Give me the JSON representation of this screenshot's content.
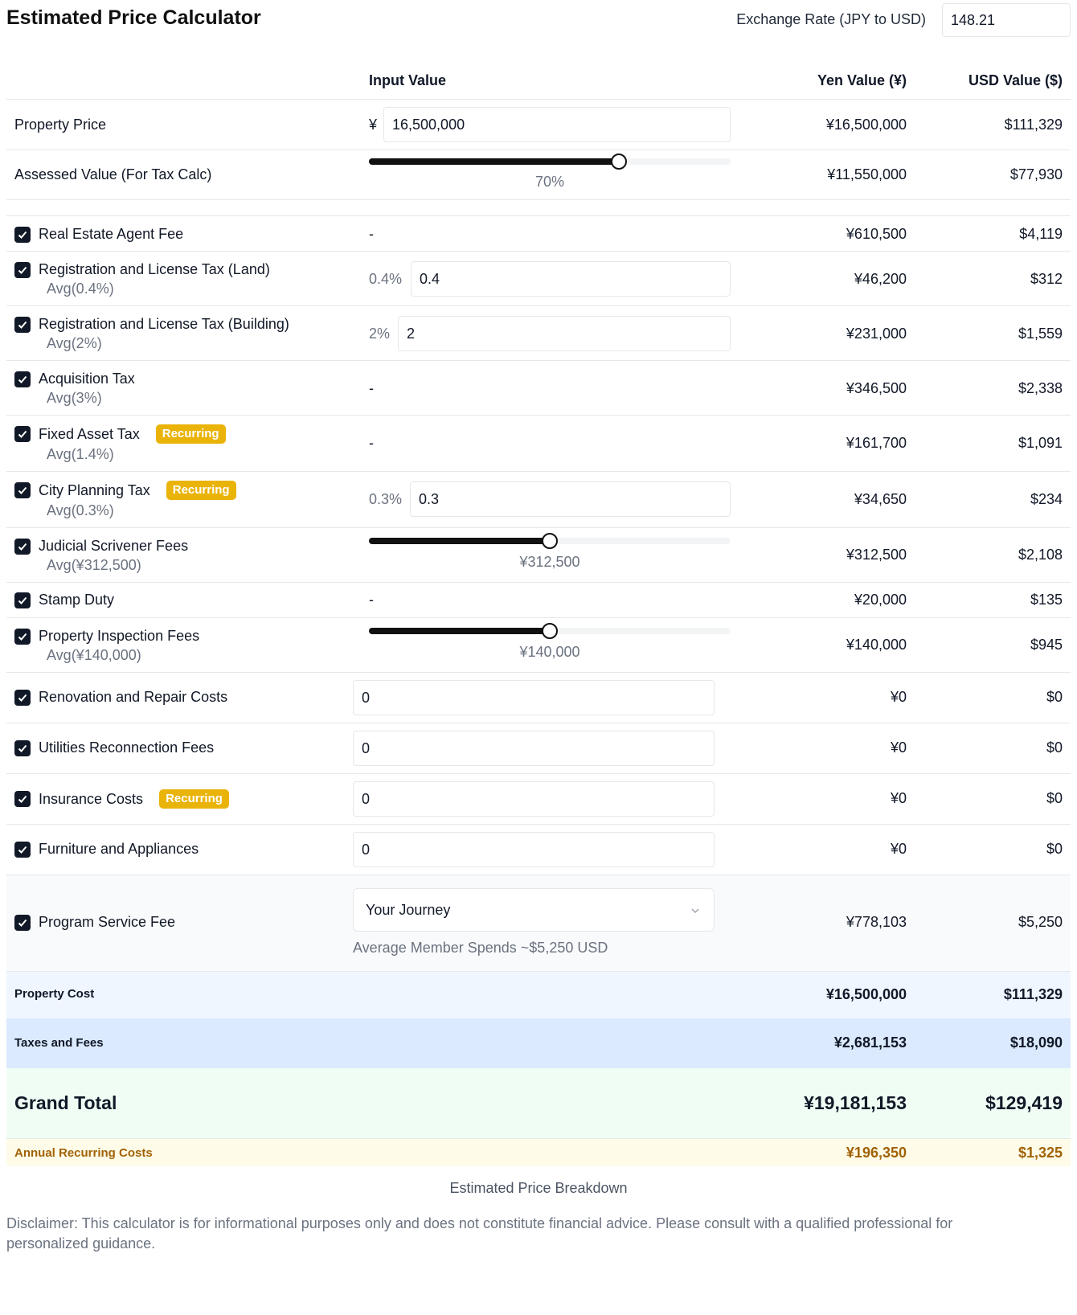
{
  "header": {
    "title": "Estimated Price Calculator",
    "rate_label": "Exchange Rate (JPY to USD)",
    "rate_value": "148.21"
  },
  "columns": {
    "input": "Input Value",
    "yen": "Yen Value (¥)",
    "usd": "USD Value ($)"
  },
  "property": {
    "label": "Property Price",
    "currency_symbol": "¥",
    "input_value": "16,500,000",
    "yen": "¥16,500,000",
    "usd": "$111,329"
  },
  "assessed": {
    "label": "Assessed Value (For Tax Calc)",
    "slider_fraction": 0.7,
    "slider_label": "70%",
    "yen": "¥11,550,000",
    "usd": "$77,930"
  },
  "fees": {
    "agent": {
      "label": "Real Estate Agent Fee",
      "input": "-",
      "yen": "¥610,500",
      "usd": "$4,119"
    },
    "reg_land": {
      "label": "Registration and License Tax (Land)",
      "avg": "Avg(0.4%)",
      "pct": "0.4%",
      "input_value": "0.4",
      "yen": "¥46,200",
      "usd": "$312"
    },
    "reg_building": {
      "label": "Registration and License Tax (Building)",
      "avg": "Avg(2%)",
      "pct": "2%",
      "input_value": "2",
      "yen": "¥231,000",
      "usd": "$1,559"
    },
    "acquisition": {
      "label": "Acquisition Tax",
      "avg": "Avg(3%)",
      "input": "-",
      "yen": "¥346,500",
      "usd": "$2,338"
    },
    "fixed_asset": {
      "label": "Fixed Asset Tax",
      "badge": "Recurring",
      "avg": "Avg(1.4%)",
      "input": "-",
      "yen": "¥161,700",
      "usd": "$1,091"
    },
    "city_planning": {
      "label": "City Planning Tax",
      "badge": "Recurring",
      "avg": "Avg(0.3%)",
      "pct": "0.3%",
      "input_value": "0.3",
      "yen": "¥34,650",
      "usd": "$234"
    },
    "judicial": {
      "label": "Judicial Scrivener Fees",
      "avg": "Avg(¥312,500)",
      "slider_fraction": 0.5,
      "slider_label": "¥312,500",
      "yen": "¥312,500",
      "usd": "$2,108"
    },
    "stamp": {
      "label": "Stamp Duty",
      "input": "-",
      "yen": "¥20,000",
      "usd": "$135"
    },
    "inspection": {
      "label": "Property Inspection Fees",
      "avg": "Avg(¥140,000)",
      "slider_fraction": 0.5,
      "slider_label": "¥140,000",
      "yen": "¥140,000",
      "usd": "$945"
    },
    "renovation": {
      "label": "Renovation and Repair Costs",
      "input_value": "0",
      "yen": "¥0",
      "usd": "$0"
    },
    "utilities": {
      "label": "Utilities Reconnection Fees",
      "input_value": "0",
      "yen": "¥0",
      "usd": "$0"
    },
    "insurance": {
      "label": "Insurance Costs",
      "badge": "Recurring",
      "input_value": "0",
      "yen": "¥0",
      "usd": "$0"
    },
    "furniture": {
      "label": "Furniture and Appliances",
      "input_value": "0",
      "yen": "¥0",
      "usd": "$0"
    },
    "program": {
      "label": "Program Service Fee",
      "select_value": "Your Journey",
      "note": "Average Member Spends ~$5,250 USD",
      "yen": "¥778,103",
      "usd": "$5,250"
    }
  },
  "summary": {
    "property_cost": {
      "label": "Property Cost",
      "yen": "¥16,500,000",
      "usd": "$111,329"
    },
    "taxes_fees": {
      "label": "Taxes and Fees",
      "yen": "¥2,681,153",
      "usd": "$18,090"
    },
    "grand_total": {
      "label": "Grand Total",
      "yen": "¥19,181,153",
      "usd": "$129,419"
    },
    "annual": {
      "label": "Annual Recurring Costs",
      "yen": "¥196,350",
      "usd": "$1,325"
    }
  },
  "footer": {
    "caption": "Estimated Price Breakdown",
    "disclaimer": "Disclaimer: This calculator is for informational purposes only and does not constitute financial advice. Please consult with a qualified professional for personalized guidance."
  },
  "colors": {
    "accent": "#111827",
    "badge": "#eab308",
    "property_cost_bg": "#eff6ff",
    "taxes_bg": "#dbeafe",
    "grand_total_bg": "#f0fdf4",
    "annual_bg": "#fefce8",
    "annual_text": "#a16207"
  }
}
